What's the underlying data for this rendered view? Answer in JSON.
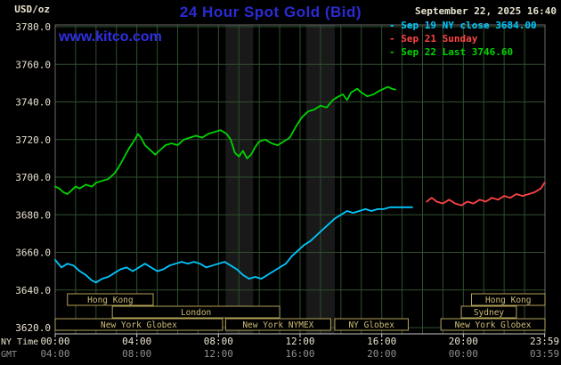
{
  "header": {
    "title": "24 Hour Spot Gold (Bid)",
    "datetime": "September 22, 2025 16:40",
    "units_label": "USD/oz",
    "watermark": "www.kitco.com"
  },
  "legend": {
    "items": [
      {
        "label": "Sep 19 NY close 3684.00"
      },
      {
        "label": "Sep 21 Sunday"
      },
      {
        "label": "Sep 22 Last 3746.60"
      }
    ]
  },
  "axes": {
    "y_label_values": [
      "3780.0",
      "3760.0",
      "3740.0",
      "3720.0",
      "3700.0",
      "3680.0",
      "3660.0",
      "3640.0",
      "3620.0"
    ],
    "x_ny_label": "NY Time",
    "x_gmt_label": "GMT",
    "x_ny_ticks": [
      "00:00",
      "04:00",
      "08:00",
      "12:00",
      "16:00",
      "20:00",
      "23:59"
    ],
    "x_gmt_ticks": [
      "04:00",
      "08:00",
      "12:00",
      "16:00",
      "20:00",
      "00:00",
      "03:59"
    ]
  },
  "sessions": [
    {
      "label": "Hong Kong",
      "row": 0,
      "start": 0.6,
      "end": 4.8
    },
    {
      "label": "Hong Kong",
      "row": 0,
      "start": 20.4,
      "end": 24
    },
    {
      "label": "London",
      "row": 1,
      "start": 2.8,
      "end": 11
    },
    {
      "label": "Sydney",
      "row": 1,
      "start": 19.9,
      "end": 22.6
    },
    {
      "label": "New York Globex",
      "row": 2,
      "start": 0,
      "end": 8.2
    },
    {
      "label": "New York NYMEX",
      "row": 2,
      "start": 8.35,
      "end": 13.5
    },
    {
      "label": "NY Globex",
      "row": 2,
      "start": 13.7,
      "end": 17.3
    },
    {
      "label": "New York Globex",
      "row": 2,
      "start": 18.9,
      "end": 24
    }
  ],
  "chart_data": {
    "type": "line",
    "title": "24 Hour Spot Gold (Bid)",
    "xlabel": "NY Time (hours, 00:00-23:59)",
    "ylabel": "USD/oz",
    "ylim": [
      3620,
      3780
    ],
    "xlim_hours": [
      0,
      24
    ],
    "grid": true,
    "legend_position": "top-right",
    "shaded_bands_hours": [
      [
        8.35,
        9.7
      ],
      [
        12.3,
        13.7
      ]
    ],
    "series": [
      {
        "name": "Sep 19 NY close 3684.00",
        "color": "#00c8ff",
        "points": [
          [
            0,
            3656
          ],
          [
            0.3,
            3652
          ],
          [
            0.6,
            3654
          ],
          [
            0.9,
            3653
          ],
          [
            1.2,
            3650
          ],
          [
            1.5,
            3648
          ],
          [
            1.8,
            3645
          ],
          [
            2,
            3644
          ],
          [
            2.3,
            3646
          ],
          [
            2.6,
            3647
          ],
          [
            2.9,
            3649
          ],
          [
            3.2,
            3651
          ],
          [
            3.5,
            3652
          ],
          [
            3.8,
            3650
          ],
          [
            4.1,
            3652
          ],
          [
            4.4,
            3654
          ],
          [
            4.7,
            3652
          ],
          [
            5,
            3650
          ],
          [
            5.3,
            3651
          ],
          [
            5.6,
            3653
          ],
          [
            5.9,
            3654
          ],
          [
            6.2,
            3655
          ],
          [
            6.5,
            3654
          ],
          [
            6.8,
            3655
          ],
          [
            7.1,
            3654
          ],
          [
            7.4,
            3652
          ],
          [
            7.7,
            3653
          ],
          [
            8,
            3654
          ],
          [
            8.3,
            3655
          ],
          [
            8.6,
            3653
          ],
          [
            8.9,
            3651
          ],
          [
            9.2,
            3648
          ],
          [
            9.5,
            3646
          ],
          [
            9.8,
            3647
          ],
          [
            10.1,
            3646
          ],
          [
            10.4,
            3648
          ],
          [
            10.7,
            3650
          ],
          [
            11,
            3652
          ],
          [
            11.3,
            3654
          ],
          [
            11.6,
            3658
          ],
          [
            11.9,
            3661
          ],
          [
            12.2,
            3664
          ],
          [
            12.5,
            3666
          ],
          [
            12.8,
            3669
          ],
          [
            13.1,
            3672
          ],
          [
            13.4,
            3675
          ],
          [
            13.7,
            3678
          ],
          [
            14,
            3680
          ],
          [
            14.3,
            3682
          ],
          [
            14.6,
            3681
          ],
          [
            14.9,
            3682
          ],
          [
            15.2,
            3683
          ],
          [
            15.5,
            3682
          ],
          [
            15.8,
            3683
          ],
          [
            16.1,
            3683
          ],
          [
            16.4,
            3684
          ],
          [
            16.8,
            3684
          ],
          [
            17.2,
            3684
          ],
          [
            17.5,
            3684
          ]
        ]
      },
      {
        "name": "Sep 21 Sunday",
        "color": "#ff4444",
        "points": [
          [
            18.2,
            3687
          ],
          [
            18.45,
            3689
          ],
          [
            18.7,
            3687
          ],
          [
            19,
            3686
          ],
          [
            19.3,
            3688
          ],
          [
            19.6,
            3686
          ],
          [
            19.9,
            3685
          ],
          [
            20.2,
            3687
          ],
          [
            20.5,
            3686
          ],
          [
            20.8,
            3688
          ],
          [
            21.1,
            3687
          ],
          [
            21.4,
            3689
          ],
          [
            21.7,
            3688
          ],
          [
            22,
            3690
          ],
          [
            22.3,
            3689
          ],
          [
            22.6,
            3691
          ],
          [
            22.9,
            3690
          ],
          [
            23.2,
            3691
          ],
          [
            23.5,
            3692
          ],
          [
            23.8,
            3694
          ],
          [
            23.98,
            3697
          ]
        ]
      },
      {
        "name": "Sep 22 Last 3746.60",
        "color": "#00d400",
        "points": [
          [
            0,
            3695
          ],
          [
            0.2,
            3694
          ],
          [
            0.4,
            3692
          ],
          [
            0.6,
            3691
          ],
          [
            0.8,
            3693
          ],
          [
            1,
            3695
          ],
          [
            1.2,
            3694
          ],
          [
            1.5,
            3696
          ],
          [
            1.8,
            3695
          ],
          [
            2,
            3697
          ],
          [
            2.3,
            3698
          ],
          [
            2.6,
            3699
          ],
          [
            2.9,
            3702
          ],
          [
            3.1,
            3705
          ],
          [
            3.3,
            3709
          ],
          [
            3.6,
            3715
          ],
          [
            3.9,
            3720
          ],
          [
            4.05,
            3723
          ],
          [
            4.2,
            3721
          ],
          [
            4.4,
            3717
          ],
          [
            4.6,
            3715
          ],
          [
            4.9,
            3712
          ],
          [
            5.1,
            3714
          ],
          [
            5.4,
            3717
          ],
          [
            5.7,
            3718
          ],
          [
            6,
            3717
          ],
          [
            6.3,
            3720
          ],
          [
            6.6,
            3721
          ],
          [
            6.9,
            3722
          ],
          [
            7.2,
            3721
          ],
          [
            7.5,
            3723
          ],
          [
            7.8,
            3724
          ],
          [
            8.1,
            3725
          ],
          [
            8.4,
            3723
          ],
          [
            8.6,
            3720
          ],
          [
            8.8,
            3713
          ],
          [
            9,
            3711
          ],
          [
            9.2,
            3714
          ],
          [
            9.4,
            3710
          ],
          [
            9.6,
            3712
          ],
          [
            9.8,
            3716
          ],
          [
            10,
            3719
          ],
          [
            10.3,
            3720
          ],
          [
            10.6,
            3718
          ],
          [
            10.9,
            3717
          ],
          [
            11.2,
            3719
          ],
          [
            11.5,
            3721
          ],
          [
            11.8,
            3727
          ],
          [
            12.1,
            3732
          ],
          [
            12.4,
            3735
          ],
          [
            12.7,
            3736
          ],
          [
            13,
            3738
          ],
          [
            13.3,
            3737
          ],
          [
            13.6,
            3741
          ],
          [
            13.9,
            3743
          ],
          [
            14.1,
            3744
          ],
          [
            14.3,
            3741
          ],
          [
            14.5,
            3745
          ],
          [
            14.8,
            3747
          ],
          [
            15,
            3745
          ],
          [
            15.3,
            3743
          ],
          [
            15.6,
            3744
          ],
          [
            15.9,
            3746
          ],
          [
            16.1,
            3747
          ],
          [
            16.3,
            3748
          ],
          [
            16.5,
            3747
          ],
          [
            16.67,
            3746.6
          ]
        ]
      }
    ]
  },
  "colors": {
    "background": "#000000",
    "title_blue": "#2b2bd5",
    "link_blue": "#2f2fe2",
    "axis_text": "#e9e3cf",
    "gmt_text": "#8f8f8f",
    "grid": "#2e4f2e",
    "frame": "#6a6a6a",
    "axis_line": "#c9c9c9",
    "session_box": "#b2a258",
    "session_text": "#cdbd76",
    "band": "#191919"
  }
}
